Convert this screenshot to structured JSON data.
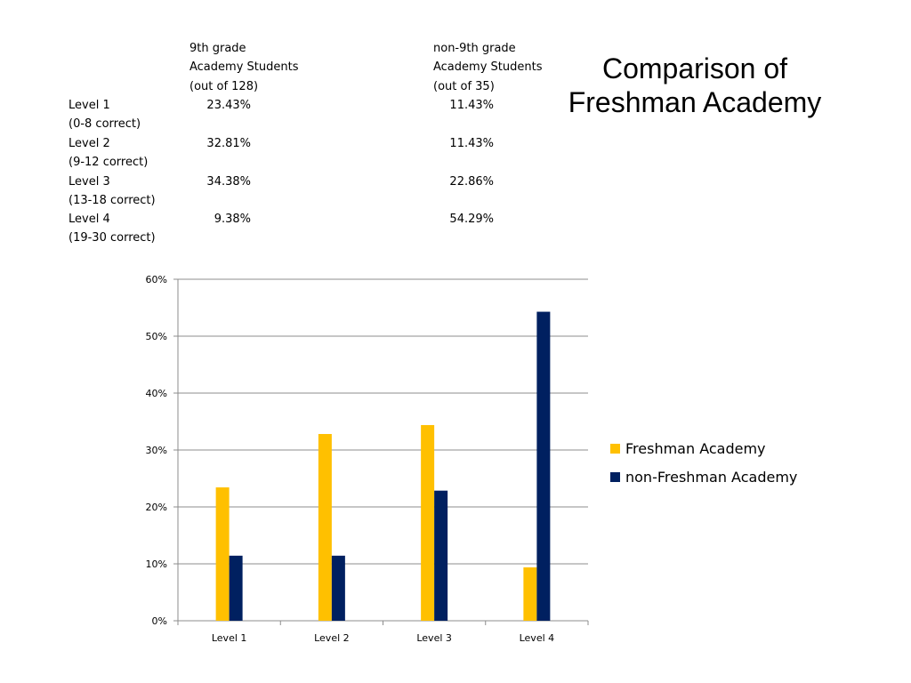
{
  "title": {
    "line1": "Comparison of",
    "line2": "Freshman Academy"
  },
  "table": {
    "columns": [
      {
        "line1": "9th grade",
        "line2": "Academy Students",
        "line3": "(out of 128)"
      },
      {
        "line1": "non-9th grade",
        "line2": "Academy Students",
        "line3": "(out of 35)"
      }
    ],
    "rows": [
      {
        "label": "Level 1",
        "sublabel": "(0-8 correct)",
        "values": [
          "23.43%",
          "11.43%"
        ]
      },
      {
        "label": "Level 2",
        "sublabel": "(9-12 correct)",
        "values": [
          "32.81%",
          "11.43%"
        ]
      },
      {
        "label": "Level 3",
        "sublabel": "(13-18 correct)",
        "values": [
          "34.38%",
          "22.86%"
        ]
      },
      {
        "label": "Level 4",
        "sublabel": "(19-30 correct)",
        "values": [
          "9.38%",
          "54.29%"
        ]
      }
    ]
  },
  "chart_data": {
    "type": "bar",
    "title": "",
    "xlabel": "",
    "ylabel": "",
    "categories": [
      "Level 1",
      "Level 2",
      "Level 3",
      "Level 4"
    ],
    "series": [
      {
        "name": "Freshman Academy",
        "color": "#FFC000",
        "values": [
          23.43,
          32.81,
          34.38,
          9.38
        ]
      },
      {
        "name": "non-Freshman Academy",
        "color": "#002060",
        "values": [
          11.43,
          11.43,
          22.86,
          54.29
        ]
      }
    ],
    "ylim": [
      0,
      60
    ],
    "yticks": [
      "0%",
      "10%",
      "20%",
      "30%",
      "40%",
      "50%",
      "60%"
    ],
    "grid": true,
    "legend": "right"
  }
}
